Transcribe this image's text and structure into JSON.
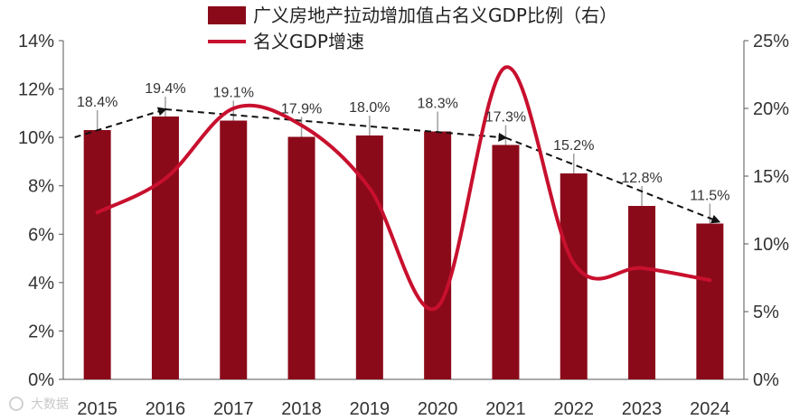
{
  "chart_data": {
    "type": "bar+line",
    "categories": [
      "2015",
      "2016",
      "2017",
      "2018",
      "2019",
      "2020",
      "2021",
      "2022",
      "2023",
      "2024"
    ],
    "series": [
      {
        "name": "广义房地产拉动增加值占名义GDP比例（右）",
        "type": "bar",
        "axis": "right",
        "values": [
          18.4,
          19.4,
          19.1,
          17.9,
          18.0,
          18.3,
          17.3,
          15.2,
          12.8,
          11.5
        ],
        "data_labels": [
          "18.4%",
          "19.4%",
          "19.1%",
          "17.9%",
          "18.0%",
          "18.3%",
          "17.3%",
          "15.2%",
          "12.8%",
          "11.5%"
        ],
        "color": "#8b0a1a"
      },
      {
        "name": "名义GDP增速",
        "type": "line",
        "axis": "left",
        "values": [
          6.9,
          8.3,
          11.2,
          10.5,
          7.9,
          3.0,
          12.9,
          4.8,
          4.6,
          4.1
        ],
        "color": "#c8102e"
      }
    ],
    "trend_arrow": "dashed black arrows following bar tops",
    "left_axis": {
      "ticks": [
        "0%",
        "2%",
        "4%",
        "6%",
        "8%",
        "10%",
        "12%",
        "14%"
      ],
      "ylim": [
        0,
        14
      ]
    },
    "right_axis": {
      "ticks": [
        "0%",
        "5%",
        "10%",
        "15%",
        "20%",
        "25%"
      ],
      "ylim": [
        0,
        25
      ]
    },
    "legend": [
      {
        "label": "广义房地产拉动增加值占名义GDP比例（右）",
        "marker": "bar"
      },
      {
        "label": "名义GDP增速",
        "marker": "line"
      }
    ],
    "legend_position": "top-center"
  },
  "watermark": "大数据"
}
